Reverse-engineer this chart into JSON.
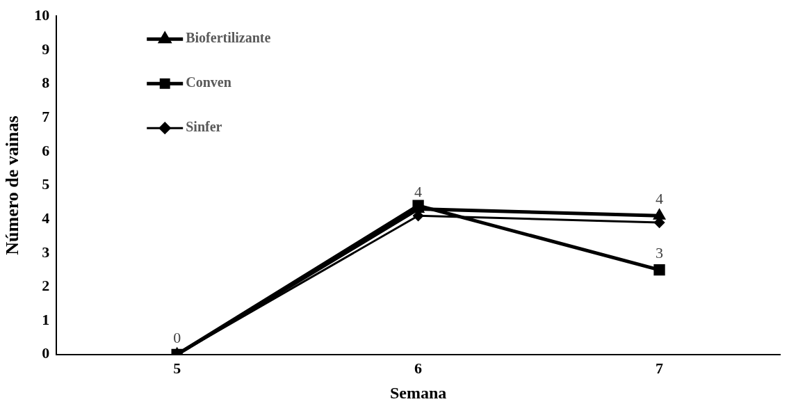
{
  "chart_data": {
    "type": "line",
    "xlabel": "Semana",
    "ylabel": "Número de vainas",
    "categories": [
      "5",
      "6",
      "7"
    ],
    "ylim": [
      0,
      10
    ],
    "yticks": [
      0,
      1,
      2,
      3,
      4,
      5,
      6,
      7,
      8,
      9,
      10
    ],
    "grid": false,
    "legend": "top left",
    "series": [
      {
        "name": "Biofertilizante",
        "color": "#000000",
        "marker": "triangle",
        "values": [
          0,
          4.3,
          4.1
        ],
        "value_labels": [
          "0",
          "4",
          "4"
        ]
      },
      {
        "name": "Conven",
        "color": "#000000",
        "marker": "square",
        "values": [
          0,
          4.4,
          2.5
        ],
        "value_labels": [
          null,
          null,
          "3"
        ]
      },
      {
        "name": "Sinfer",
        "color": "#000000",
        "marker": "diamond",
        "values": [
          0,
          4.1,
          3.9
        ]
      }
    ]
  }
}
